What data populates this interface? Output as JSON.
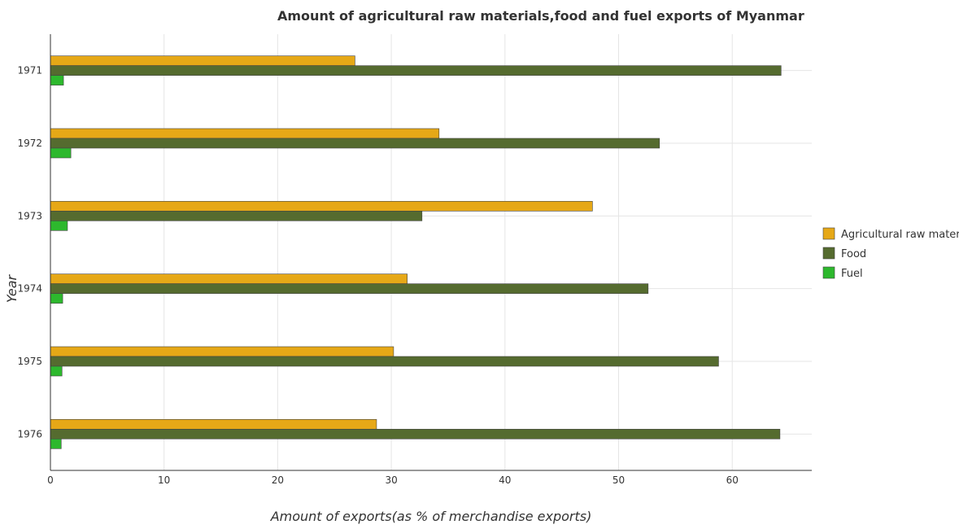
{
  "chart_data": {
    "type": "bar",
    "orientation": "horizontal",
    "title": "Amount of agricultural raw materials,food and fuel exports of Myanmar",
    "xlabel": "Amount of exports(as % of merchandise exports)",
    "ylabel": "Year",
    "categories": [
      "1971",
      "1972",
      "1973",
      "1974",
      "1975",
      "1976"
    ],
    "xlim": [
      0,
      67
    ],
    "xticks": [
      0,
      10,
      20,
      30,
      40,
      50,
      60
    ],
    "grid": true,
    "legend_position": "right",
    "series": [
      {
        "name": "Agricultural raw materials",
        "color": "#e6a817",
        "values": [
          26.8,
          34.2,
          47.7,
          31.4,
          30.2,
          28.7
        ]
      },
      {
        "name": "Food",
        "color": "#556b2f",
        "values": [
          64.3,
          53.6,
          32.7,
          52.6,
          58.8,
          64.2
        ]
      },
      {
        "name": "Fuel",
        "color": "#2db82d",
        "values": [
          1.15,
          1.8,
          1.5,
          1.08,
          1.02,
          0.95
        ]
      }
    ]
  }
}
